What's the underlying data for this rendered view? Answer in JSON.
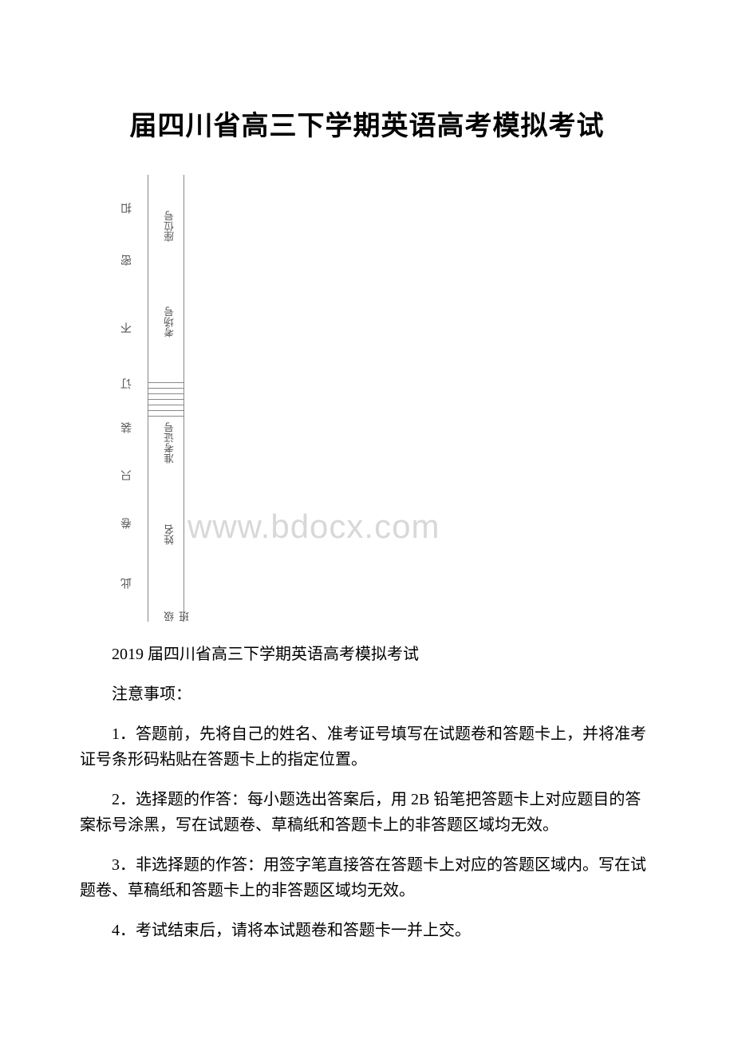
{
  "title": "届四川省高三下学期英语高考模拟考试",
  "watermark": "www.bdocx.com",
  "binding": {
    "outer_labels": [
      "扣",
      "密",
      "不",
      "订",
      "装",
      "只",
      "卷",
      "此"
    ],
    "inner_labels": [
      "座位号",
      "考场号",
      "准考证号",
      "姓名",
      "级班"
    ]
  },
  "subtitle": "2019 届四川省高三下学期英语高考模拟考试",
  "notice_header": "注意事项：",
  "instructions": [
    "1．答题前，先将自己的姓名、准考证号填写在试题卷和答题卡上，并将准考证号条形码粘贴在答题卡上的指定位置。",
    "2．选择题的作答：每小题选出答案后，用 2B 铅笔把答题卡上对应题目的答案标号涂黑，写在试题卷、草稿纸和答题卡上的非答题区域均无效。",
    "3．非选择题的作答：用签字笔直接答在答题卡上对应的答题区域内。写在试题卷、草稿纸和答题卡上的非答题区域均无效。",
    "4．考试结束后，请将本试题卷和答题卡一并上交。"
  ]
}
